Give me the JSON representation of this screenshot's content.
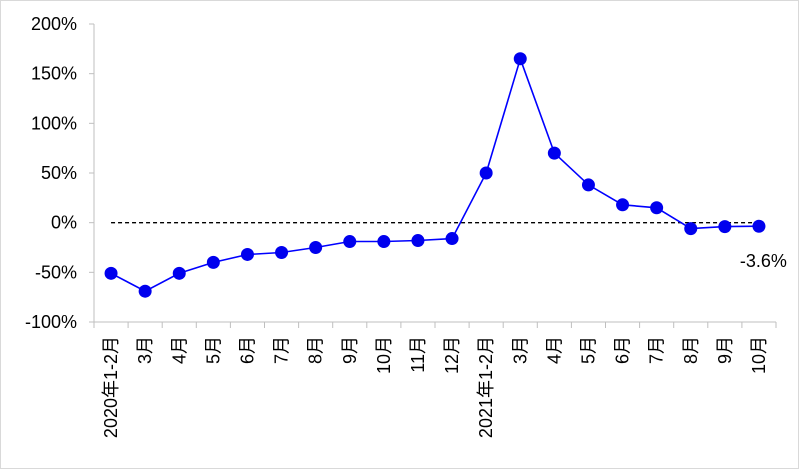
{
  "chart_data": {
    "type": "line",
    "title": "",
    "xlabel": "",
    "ylabel": "",
    "categories": [
      "2020年1-2月",
      "3月",
      "4月",
      "5月",
      "6月",
      "7月",
      "8月",
      "9月",
      "10月",
      "11月",
      "12月",
      "2021年1-2月",
      "3月",
      "4月",
      "5月",
      "6月",
      "7月",
      "8月",
      "9月",
      "10月"
    ],
    "series": [
      {
        "values": [
          -51,
          -69,
          -51,
          -40,
          -32,
          -30,
          -25,
          -19,
          -19,
          -18,
          -16,
          50,
          165,
          70,
          38,
          18,
          15,
          -6,
          -4,
          -3.6
        ]
      }
    ],
    "ylim": [
      -100,
      200
    ],
    "yticks": [
      -100,
      -50,
      0,
      50,
      100,
      150,
      200
    ],
    "ytick_labels": [
      "-100%",
      "-50%",
      "0%",
      "50%",
      "100%",
      "150%",
      "200%"
    ],
    "reference_line": {
      "value": 0,
      "style": "dashed"
    },
    "annotation": {
      "text": "-3.6%",
      "point_index": 19
    },
    "grid": false,
    "legend": "none",
    "colors": {
      "line": "#0000ff",
      "marker": "#0000ee",
      "axis": "#bfbfbf",
      "reference": "#000000"
    }
  }
}
